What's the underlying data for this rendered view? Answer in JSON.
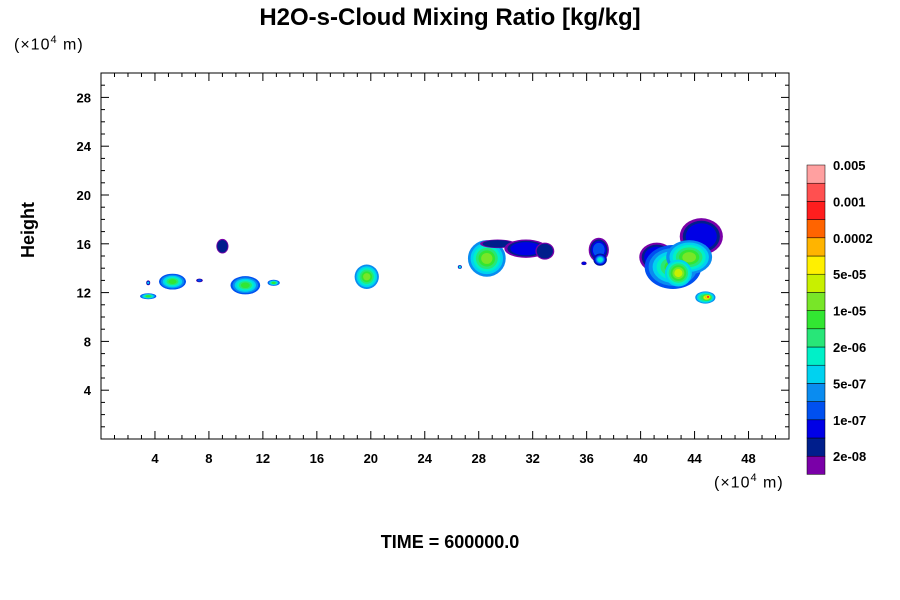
{
  "chart_data": {
    "type": "contour",
    "title": "H2O-s-Cloud Mixing Ratio [kg/kg]",
    "ylabel": "Height",
    "x_unit": {
      "prefix": "(×10",
      "exp": "4",
      "suffix": " m)"
    },
    "y_unit": {
      "prefix": "(×10",
      "exp": "4",
      "suffix": " m)"
    },
    "xlim": [
      0,
      51
    ],
    "ylim": [
      0,
      30
    ],
    "x_ticks": [
      "4",
      "8",
      "12",
      "16",
      "20",
      "24",
      "28",
      "32",
      "36",
      "40",
      "44",
      "48"
    ],
    "y_ticks": [
      "4",
      "8",
      "12",
      "16",
      "20",
      "24",
      "28"
    ],
    "time_label": "TIME = 600000.0",
    "colorbar": {
      "colors": [
        "#7a00a8",
        "#001e8c",
        "#0000e6",
        "#0050f0",
        "#0a8cf0",
        "#00d2f0",
        "#00f0c8",
        "#28e678",
        "#32e632",
        "#78e628",
        "#c8f000",
        "#fff000",
        "#ffb400",
        "#ff6400",
        "#ff1e1e",
        "#ff5050",
        "#ffa0a0"
      ],
      "labels": [
        "2e-08",
        "1e-07",
        "5e-07",
        "2e-06",
        "1e-05",
        "5e-05",
        "0.0002",
        "0.001",
        "0.005"
      ]
    },
    "clouds": [
      {
        "x": 3.5,
        "y": 11.7,
        "rx": 0.6,
        "ry": 0.25,
        "level": 8
      },
      {
        "x": 3.5,
        "y": 12.8,
        "rx": 0.15,
        "ry": 0.2,
        "level": 5
      },
      {
        "x": 5.3,
        "y": 12.9,
        "rx": 1.0,
        "ry": 0.65,
        "level": 8
      },
      {
        "x": 7.3,
        "y": 13.0,
        "rx": 0.25,
        "ry": 0.15,
        "level": 3
      },
      {
        "x": 9.0,
        "y": 15.8,
        "rx": 0.45,
        "ry": 0.6,
        "level": 1
      },
      {
        "x": 10.7,
        "y": 12.6,
        "rx": 1.1,
        "ry": 0.75,
        "level": 8
      },
      {
        "x": 12.8,
        "y": 12.8,
        "rx": 0.45,
        "ry": 0.25,
        "level": 8
      },
      {
        "x": 19.7,
        "y": 13.3,
        "rx": 0.9,
        "ry": 1.0,
        "level": 9
      },
      {
        "x": 26.6,
        "y": 14.1,
        "rx": 0.15,
        "ry": 0.15,
        "level": 6
      },
      {
        "x": 28.6,
        "y": 14.8,
        "rx": 1.4,
        "ry": 1.5,
        "level": 9
      },
      {
        "x": 29.4,
        "y": 16.0,
        "rx": 1.3,
        "ry": 0.35,
        "level": 1
      },
      {
        "x": 31.5,
        "y": 15.6,
        "rx": 1.6,
        "ry": 0.75,
        "level": 2
      },
      {
        "x": 32.9,
        "y": 15.4,
        "rx": 0.7,
        "ry": 0.7,
        "level": 1
      },
      {
        "x": 35.8,
        "y": 14.4,
        "rx": 0.2,
        "ry": 0.15,
        "level": 2
      },
      {
        "x": 36.9,
        "y": 15.5,
        "rx": 0.75,
        "ry": 1.0,
        "level": 3
      },
      {
        "x": 37.0,
        "y": 14.7,
        "rx": 0.5,
        "ry": 0.5,
        "level": 6
      },
      {
        "x": 41.2,
        "y": 14.9,
        "rx": 1.3,
        "ry": 1.2,
        "level": 2
      },
      {
        "x": 44.5,
        "y": 16.6,
        "rx": 1.6,
        "ry": 1.5,
        "level": 2
      },
      {
        "x": 42.4,
        "y": 14.1,
        "rx": 2.1,
        "ry": 1.8,
        "level": 8
      },
      {
        "x": 43.6,
        "y": 14.9,
        "rx": 1.7,
        "ry": 1.4,
        "level": 9
      },
      {
        "x": 42.8,
        "y": 13.6,
        "rx": 1.0,
        "ry": 1.1,
        "level": 10
      },
      {
        "x": 44.8,
        "y": 11.6,
        "rx": 0.75,
        "ry": 0.5,
        "level": 9
      },
      {
        "x": 44.9,
        "y": 11.6,
        "rx": 0.4,
        "ry": 0.3,
        "level": 12
      },
      {
        "x": 45.0,
        "y": 11.65,
        "rx": 0.2,
        "ry": 0.15,
        "level": 14
      }
    ]
  }
}
